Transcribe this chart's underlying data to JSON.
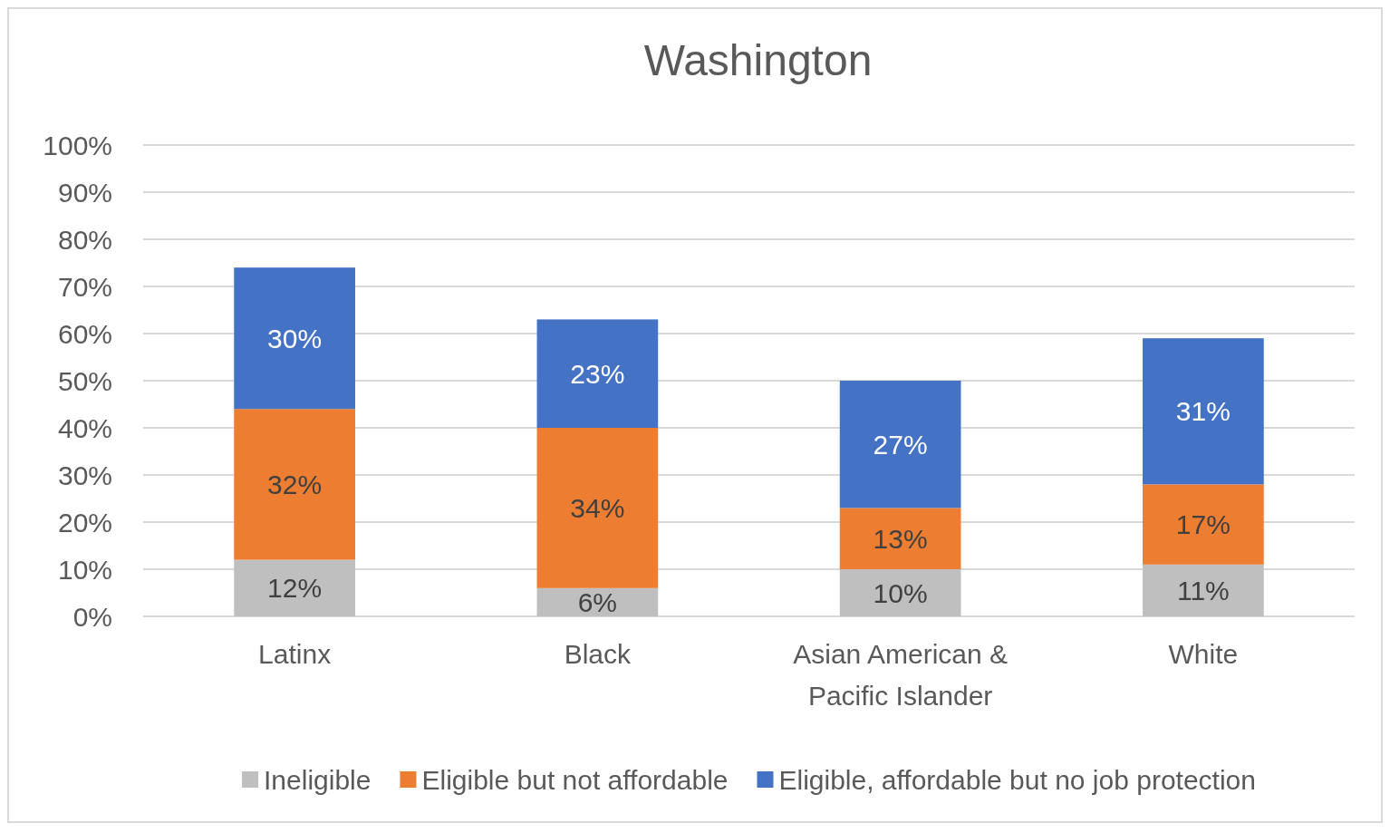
{
  "chart_data": {
    "type": "bar",
    "title": "Washington",
    "stacked": true,
    "categories": [
      "Latinx",
      "Black",
      "Asian American & Pacific Islander",
      "White"
    ],
    "series": [
      {
        "name": "Ineligible",
        "color": "#bfbfbf",
        "values": [
          12,
          6,
          10,
          11
        ],
        "value_labels": [
          "12%",
          "6%",
          "10%",
          "11%"
        ]
      },
      {
        "name": "Eligible but not affordable",
        "color": "#ed7d31",
        "values": [
          32,
          34,
          13,
          17
        ],
        "value_labels": [
          "32%",
          "34%",
          "13%",
          "17%"
        ]
      },
      {
        "name": "Eligible, affordable but no job protection",
        "color": "#4472c4",
        "values": [
          30,
          23,
          27,
          31
        ],
        "value_labels": [
          "30%",
          "23%",
          "27%",
          "31%"
        ]
      }
    ],
    "ylim": [
      0,
      100
    ],
    "yticks": [
      {
        "value": 0,
        "label": "0%"
      },
      {
        "value": 10,
        "label": "10%"
      },
      {
        "value": 20,
        "label": "20%"
      },
      {
        "value": 30,
        "label": "30%"
      },
      {
        "value": 40,
        "label": "40%"
      },
      {
        "value": 50,
        "label": "50%"
      },
      {
        "value": 60,
        "label": "60%"
      },
      {
        "value": 70,
        "label": "70%"
      },
      {
        "value": 80,
        "label": "80%"
      },
      {
        "value": 90,
        "label": "90%"
      },
      {
        "value": 100,
        "label": "100%"
      }
    ],
    "grid": "y",
    "legend": "bottom"
  }
}
